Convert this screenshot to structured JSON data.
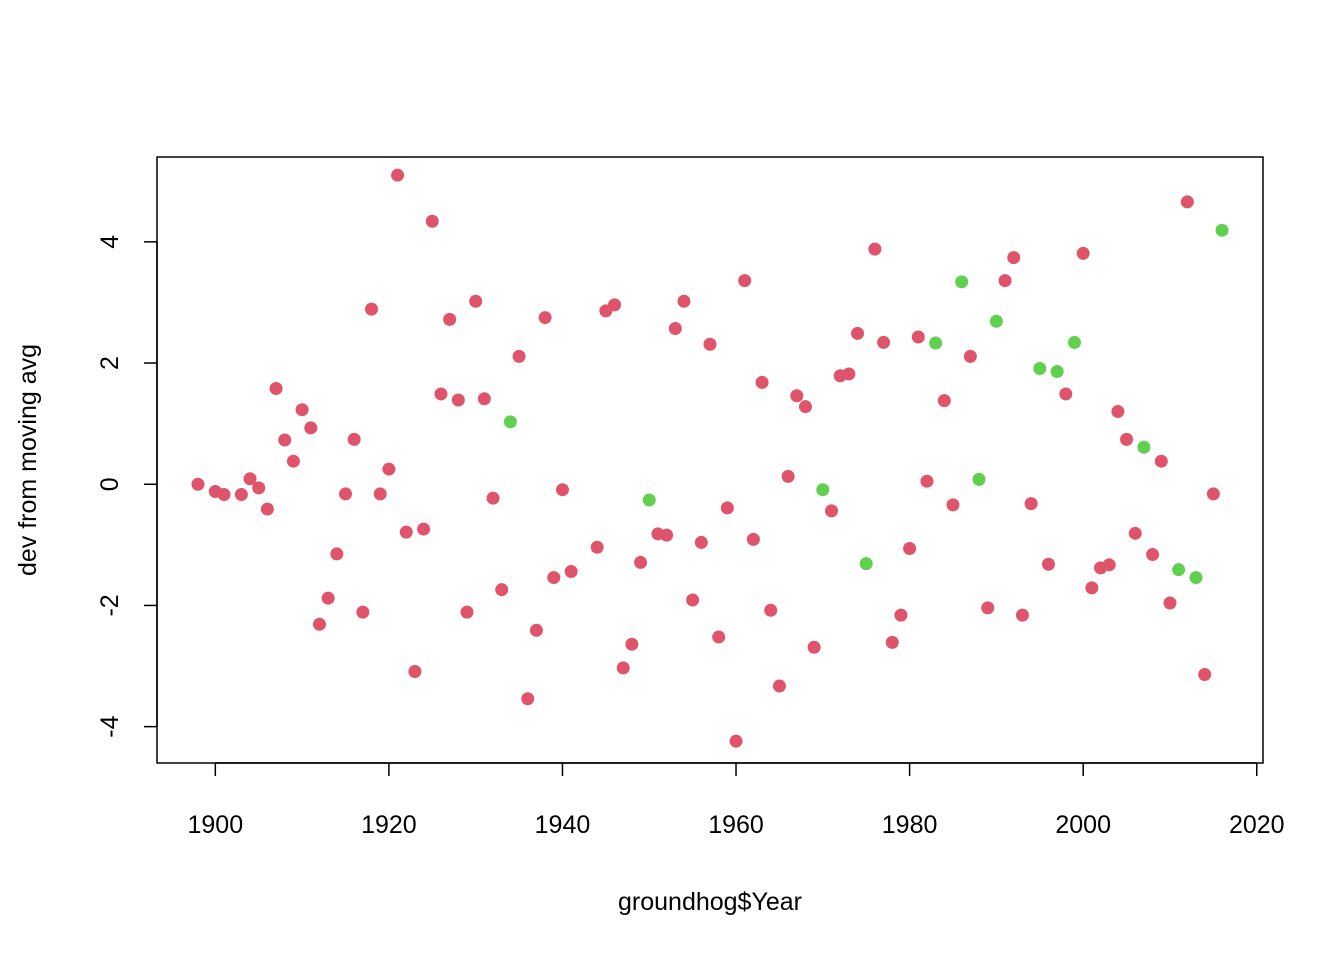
{
  "chart_data": {
    "type": "scatter",
    "xlabel": "groundhog$Year",
    "ylabel": "dev from moving avg",
    "xlim": [
      1893.28,
      2020.72
    ],
    "ylim": [
      -4.6,
      5.4
    ],
    "x_ticks": [
      1900,
      1920,
      1940,
      1960,
      1980,
      2000,
      2020
    ],
    "y_ticks": [
      -4,
      -2,
      0,
      2,
      4
    ],
    "grid": false,
    "legend": "none",
    "colors": {
      "red": "#DF536B",
      "green": "#61D04F"
    },
    "points": [
      {
        "x": 1898,
        "y": 0.0,
        "c": "red"
      },
      {
        "x": 1900,
        "y": -0.12,
        "c": "red"
      },
      {
        "x": 1901,
        "y": -0.17,
        "c": "red"
      },
      {
        "x": 1903,
        "y": -0.17,
        "c": "red"
      },
      {
        "x": 1904,
        "y": 0.09,
        "c": "red"
      },
      {
        "x": 1905,
        "y": -0.06,
        "c": "red"
      },
      {
        "x": 1906,
        "y": -0.41,
        "c": "red"
      },
      {
        "x": 1907,
        "y": 1.58,
        "c": "red"
      },
      {
        "x": 1908,
        "y": 0.73,
        "c": "red"
      },
      {
        "x": 1909,
        "y": 0.38,
        "c": "red"
      },
      {
        "x": 1910,
        "y": 1.23,
        "c": "red"
      },
      {
        "x": 1911,
        "y": 0.93,
        "c": "red"
      },
      {
        "x": 1912,
        "y": -2.31,
        "c": "red"
      },
      {
        "x": 1913,
        "y": -1.88,
        "c": "red"
      },
      {
        "x": 1914,
        "y": -1.15,
        "c": "red"
      },
      {
        "x": 1915,
        "y": -0.16,
        "c": "red"
      },
      {
        "x": 1916,
        "y": 0.74,
        "c": "red"
      },
      {
        "x": 1917,
        "y": -2.11,
        "c": "red"
      },
      {
        "x": 1918,
        "y": 2.89,
        "c": "red"
      },
      {
        "x": 1919,
        "y": -0.16,
        "c": "red"
      },
      {
        "x": 1920,
        "y": 0.25,
        "c": "red"
      },
      {
        "x": 1921,
        "y": 5.1,
        "c": "red"
      },
      {
        "x": 1922,
        "y": -0.79,
        "c": "red"
      },
      {
        "x": 1923,
        "y": -3.09,
        "c": "red"
      },
      {
        "x": 1924,
        "y": -0.74,
        "c": "red"
      },
      {
        "x": 1925,
        "y": 4.34,
        "c": "red"
      },
      {
        "x": 1926,
        "y": 1.49,
        "c": "red"
      },
      {
        "x": 1927,
        "y": 2.72,
        "c": "red"
      },
      {
        "x": 1928,
        "y": 1.39,
        "c": "red"
      },
      {
        "x": 1929,
        "y": -2.11,
        "c": "red"
      },
      {
        "x": 1930,
        "y": 3.02,
        "c": "red"
      },
      {
        "x": 1931,
        "y": 1.41,
        "c": "red"
      },
      {
        "x": 1932,
        "y": -0.23,
        "c": "red"
      },
      {
        "x": 1933,
        "y": -1.74,
        "c": "red"
      },
      {
        "x": 1934,
        "y": 1.03,
        "c": "green"
      },
      {
        "x": 1935,
        "y": 2.11,
        "c": "red"
      },
      {
        "x": 1936,
        "y": -3.54,
        "c": "red"
      },
      {
        "x": 1937,
        "y": -2.41,
        "c": "red"
      },
      {
        "x": 1938,
        "y": 2.75,
        "c": "red"
      },
      {
        "x": 1939,
        "y": -1.54,
        "c": "red"
      },
      {
        "x": 1940,
        "y": -0.09,
        "c": "red"
      },
      {
        "x": 1941,
        "y": -1.44,
        "c": "red"
      },
      {
        "x": 1944,
        "y": -1.04,
        "c": "red"
      },
      {
        "x": 1945,
        "y": 2.86,
        "c": "red"
      },
      {
        "x": 1946,
        "y": 2.96,
        "c": "red"
      },
      {
        "x": 1947,
        "y": -3.03,
        "c": "red"
      },
      {
        "x": 1948,
        "y": -2.64,
        "c": "red"
      },
      {
        "x": 1949,
        "y": -1.29,
        "c": "red"
      },
      {
        "x": 1950,
        "y": -0.26,
        "c": "green"
      },
      {
        "x": 1951,
        "y": -0.82,
        "c": "red"
      },
      {
        "x": 1952,
        "y": -0.84,
        "c": "red"
      },
      {
        "x": 1953,
        "y": 2.57,
        "c": "red"
      },
      {
        "x": 1954,
        "y": 3.02,
        "c": "red"
      },
      {
        "x": 1955,
        "y": -1.91,
        "c": "red"
      },
      {
        "x": 1956,
        "y": -0.96,
        "c": "red"
      },
      {
        "x": 1957,
        "y": 2.31,
        "c": "red"
      },
      {
        "x": 1958,
        "y": -2.52,
        "c": "red"
      },
      {
        "x": 1959,
        "y": -0.39,
        "c": "red"
      },
      {
        "x": 1960,
        "y": -4.24,
        "c": "red"
      },
      {
        "x": 1961,
        "y": 3.36,
        "c": "red"
      },
      {
        "x": 1962,
        "y": -0.91,
        "c": "red"
      },
      {
        "x": 1963,
        "y": 1.68,
        "c": "red"
      },
      {
        "x": 1964,
        "y": -2.08,
        "c": "red"
      },
      {
        "x": 1965,
        "y": -3.33,
        "c": "red"
      },
      {
        "x": 1966,
        "y": 0.13,
        "c": "red"
      },
      {
        "x": 1967,
        "y": 1.46,
        "c": "red"
      },
      {
        "x": 1968,
        "y": 1.28,
        "c": "red"
      },
      {
        "x": 1969,
        "y": -2.69,
        "c": "red"
      },
      {
        "x": 1970,
        "y": -0.09,
        "c": "green"
      },
      {
        "x": 1971,
        "y": -0.44,
        "c": "red"
      },
      {
        "x": 1972,
        "y": 1.79,
        "c": "red"
      },
      {
        "x": 1973,
        "y": 1.82,
        "c": "red"
      },
      {
        "x": 1974,
        "y": 2.49,
        "c": "red"
      },
      {
        "x": 1975,
        "y": -1.31,
        "c": "green"
      },
      {
        "x": 1976,
        "y": 3.88,
        "c": "red"
      },
      {
        "x": 1977,
        "y": 2.34,
        "c": "red"
      },
      {
        "x": 1978,
        "y": -2.61,
        "c": "red"
      },
      {
        "x": 1979,
        "y": -2.16,
        "c": "red"
      },
      {
        "x": 1980,
        "y": -1.06,
        "c": "red"
      },
      {
        "x": 1981,
        "y": 2.43,
        "c": "red"
      },
      {
        "x": 1982,
        "y": 0.05,
        "c": "red"
      },
      {
        "x": 1983,
        "y": 2.33,
        "c": "green"
      },
      {
        "x": 1984,
        "y": 1.38,
        "c": "red"
      },
      {
        "x": 1985,
        "y": -0.34,
        "c": "red"
      },
      {
        "x": 1986,
        "y": 3.34,
        "c": "green"
      },
      {
        "x": 1987,
        "y": 2.11,
        "c": "red"
      },
      {
        "x": 1988,
        "y": 0.08,
        "c": "green"
      },
      {
        "x": 1989,
        "y": -2.04,
        "c": "red"
      },
      {
        "x": 1990,
        "y": 2.69,
        "c": "green"
      },
      {
        "x": 1991,
        "y": 3.36,
        "c": "red"
      },
      {
        "x": 1992,
        "y": 3.74,
        "c": "red"
      },
      {
        "x": 1993,
        "y": -2.16,
        "c": "red"
      },
      {
        "x": 1994,
        "y": -0.32,
        "c": "red"
      },
      {
        "x": 1995,
        "y": 1.91,
        "c": "green"
      },
      {
        "x": 1996,
        "y": -1.32,
        "c": "red"
      },
      {
        "x": 1997,
        "y": 1.86,
        "c": "green"
      },
      {
        "x": 1998,
        "y": 1.49,
        "c": "red"
      },
      {
        "x": 1999,
        "y": 2.34,
        "c": "green"
      },
      {
        "x": 2000,
        "y": 3.81,
        "c": "red"
      },
      {
        "x": 2001,
        "y": -1.71,
        "c": "red"
      },
      {
        "x": 2002,
        "y": -1.38,
        "c": "red"
      },
      {
        "x": 2003,
        "y": -1.33,
        "c": "red"
      },
      {
        "x": 2004,
        "y": 1.2,
        "c": "red"
      },
      {
        "x": 2005,
        "y": 0.74,
        "c": "red"
      },
      {
        "x": 2006,
        "y": -0.81,
        "c": "red"
      },
      {
        "x": 2007,
        "y": 0.61,
        "c": "green"
      },
      {
        "x": 2008,
        "y": -1.16,
        "c": "red"
      },
      {
        "x": 2009,
        "y": 0.38,
        "c": "red"
      },
      {
        "x": 2010,
        "y": -1.96,
        "c": "red"
      },
      {
        "x": 2011,
        "y": -1.41,
        "c": "green"
      },
      {
        "x": 2012,
        "y": 4.66,
        "c": "red"
      },
      {
        "x": 2013,
        "y": -1.54,
        "c": "green"
      },
      {
        "x": 2014,
        "y": -3.14,
        "c": "red"
      },
      {
        "x": 2015,
        "y": -0.16,
        "c": "red"
      },
      {
        "x": 2016,
        "y": 4.19,
        "c": "green"
      }
    ]
  }
}
